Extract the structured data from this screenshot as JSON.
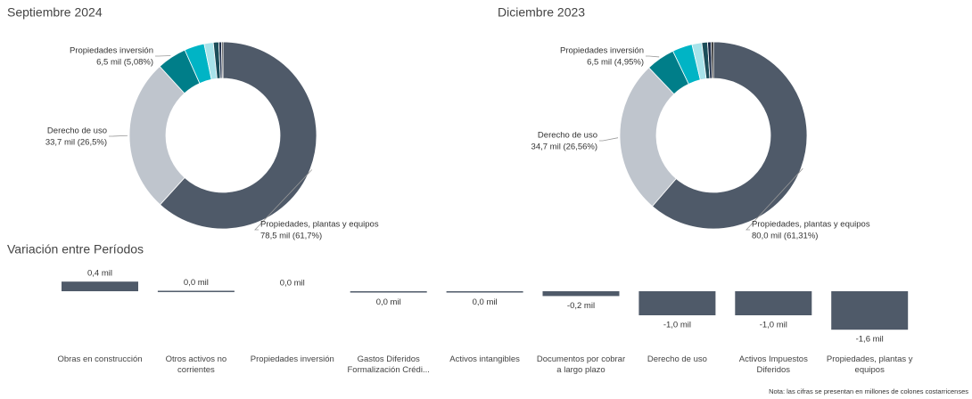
{
  "chart_data": [
    {
      "type": "donut",
      "title": "Septiembre 2024",
      "categories": [
        "Propiedades, plantas y equipos",
        "Derecho de uso",
        "Propiedades inversión",
        null,
        null,
        null,
        null,
        null
      ],
      "values": [
        78.5,
        33.7,
        6.5,
        4.4,
        2.0,
        1.2,
        0.6,
        0.3
      ],
      "value_labels": [
        "78,5 mil (61,7%)",
        "33,7 mil (26,5%)",
        "6,5 mil (5,08%)",
        null,
        null,
        null,
        null,
        null
      ],
      "colors": [
        "#4f5a69",
        "#bfc5cd",
        "#007e89",
        "#00b4c5",
        "#a8e3ea",
        "#1c4e5a",
        "#1f2e4a",
        "#111111"
      ]
    },
    {
      "type": "donut",
      "title": "Diciembre 2023",
      "categories": [
        "Propiedades, plantas y equipos",
        "Derecho de uso",
        "Propiedades inversión",
        null,
        null,
        null,
        null,
        null
      ],
      "values": [
        80.0,
        34.7,
        6.5,
        4.5,
        2.2,
        1.3,
        0.8,
        0.5
      ],
      "value_labels": [
        "80,0 mil (61,31%)",
        "34,7 mil (26,56%)",
        "6,5 mil (4,95%)",
        null,
        null,
        null,
        null,
        null
      ],
      "colors": [
        "#4f5a69",
        "#bfc5cd",
        "#007e89",
        "#00b4c5",
        "#a8e3ea",
        "#1c4e5a",
        "#1f2e4a",
        "#111111"
      ]
    },
    {
      "type": "bar",
      "title": "Variación entre Períodos",
      "categories": [
        "Obras en construcción",
        "Otros activos no corrientes",
        "Propiedades inversión",
        "Gastos Diferidos Formalización Crédi...",
        "Activos intangibles",
        "Documentos por cobrar a largo plazo",
        "Derecho de uso",
        "Activos Impuestos Diferidos",
        "Propiedades, plantas y equipos"
      ],
      "values": [
        0.4,
        0.02,
        0,
        -0.02,
        -0.03,
        -0.2,
        -1.0,
        -1.0,
        -1.6
      ],
      "value_labels": [
        "0,4 mil",
        "0,0 mil",
        "0,0 mil",
        "0,0 mil",
        "0,0 mil",
        "-0,2 mil",
        "-1,0 mil",
        "-1,0 mil",
        "-1,6 mil"
      ],
      "color": "#4f5a69",
      "note": "Nota: las cifras se presentan en millones de colones costarricenses"
    }
  ]
}
